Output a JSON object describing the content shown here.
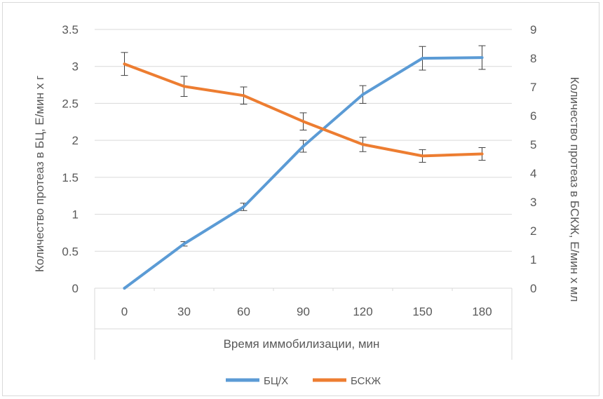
{
  "chart_data": {
    "type": "line",
    "title": "",
    "xlabel": "Время иммобилизации, мин",
    "ylabel": "Количество протеаз в БЦ, Е/мин х г",
    "y2label": "Количество протеаз в БСКЖ, Е/мин х мл",
    "categories": [
      "0",
      "30",
      "60",
      "90",
      "120",
      "150",
      "180"
    ],
    "ylim": [
      0,
      3.5
    ],
    "y_ticks": [
      "0",
      "0.5",
      "1",
      "1.5",
      "2",
      "2.5",
      "3",
      "3.5"
    ],
    "y2lim": [
      0,
      9
    ],
    "y2_ticks": [
      "0",
      "1",
      "2",
      "3",
      "4",
      "5",
      "6",
      "7",
      "8",
      "9"
    ],
    "grid": true,
    "legend_position": "bottom",
    "series": [
      {
        "name": "БЦ/Х",
        "axis": "left",
        "color": "#5b9bd5",
        "values": [
          0,
          0.6,
          1.1,
          1.92,
          2.62,
          3.11,
          3.12
        ],
        "errors": [
          0,
          0.03,
          0.05,
          0.08,
          0.12,
          0.16,
          0.16
        ]
      },
      {
        "name": "БСКЖ",
        "axis": "right",
        "color": "#ed7d31",
        "values": [
          7.8,
          7.02,
          6.7,
          5.8,
          5.0,
          4.6,
          4.67
        ],
        "errors": [
          0.4,
          0.35,
          0.3,
          0.3,
          0.25,
          0.22,
          0.22
        ]
      }
    ]
  }
}
